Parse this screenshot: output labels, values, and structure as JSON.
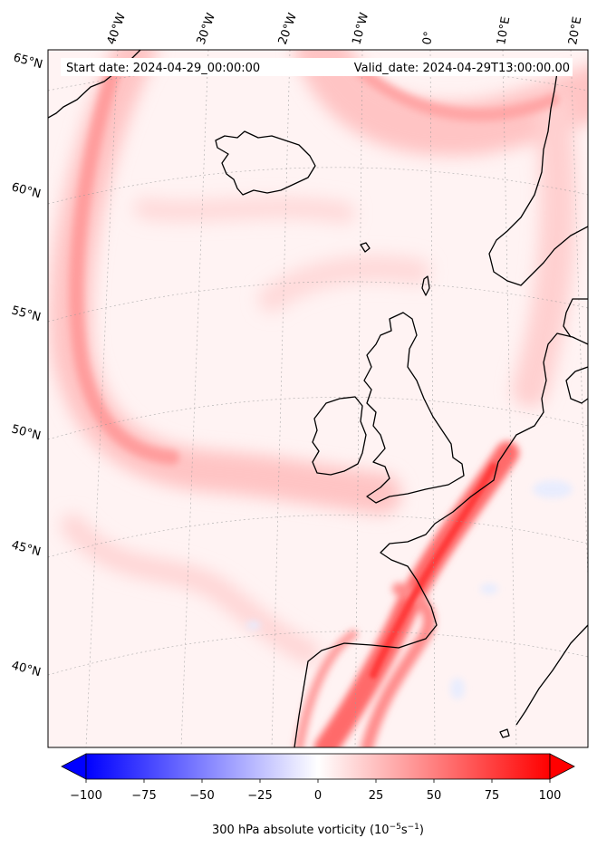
{
  "map": {
    "start_date": "Start date: 2024-04-29_00:00:00",
    "valid_date": "Valid_date: 2024-04-29T13:00:00.00",
    "lon_labels": [
      "40°W",
      "30°W",
      "20°W",
      "10°W",
      "0°",
      "10°E",
      "20°E"
    ],
    "lat_labels": [
      "65°N",
      "60°N",
      "55°N",
      "50°N",
      "45°N",
      "40°N"
    ],
    "field": "300 hPa absolute vorticity",
    "palette": {
      "negative": "#0000ff",
      "neutral": "#ffffff",
      "positive": "#ff0000",
      "coast": "#000000"
    }
  },
  "colorbar": {
    "label": "300 hPa absolute vorticity (10",
    "label_exp1": "−5",
    "label_mid": "s",
    "label_exp2": "−1",
    "label_end": ")",
    "min": -100,
    "max": 100,
    "ticks": [
      "−100",
      "−75",
      "−50",
      "−25",
      "0",
      "25",
      "50",
      "75",
      "100"
    ]
  }
}
